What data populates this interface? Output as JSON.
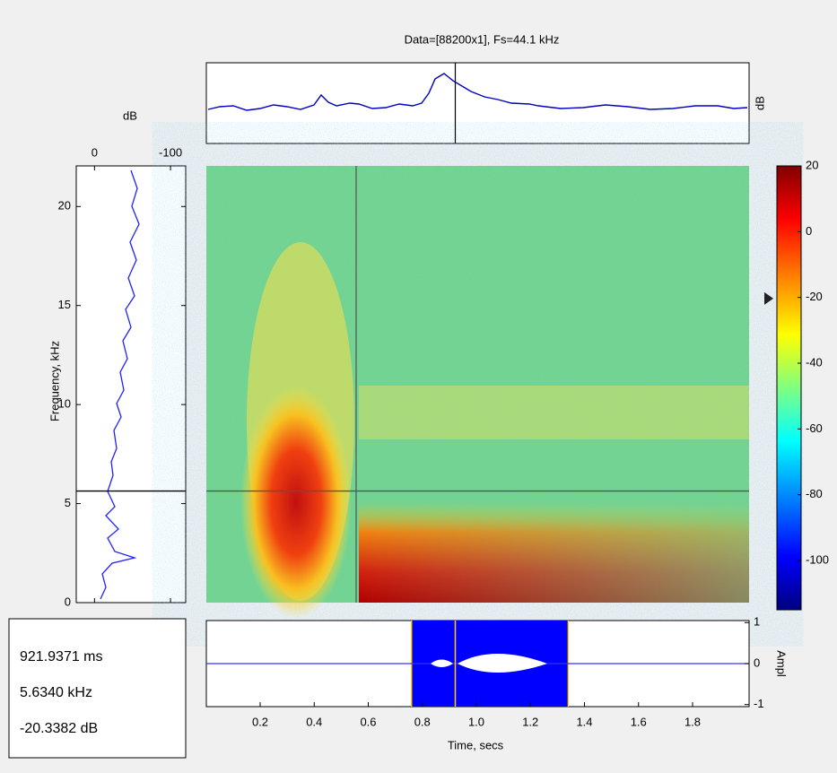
{
  "title": "Data=[88200x1], Fs=44.1 kHz",
  "top_panel": {
    "ylabel": "dB"
  },
  "left_panel": {
    "title": "dB",
    "xlim": [
      24,
      -120
    ],
    "xticks": [
      0,
      -100
    ],
    "ylabel": "Frequency, kHz",
    "ylim": [
      0,
      22.05
    ],
    "yticks": [
      0,
      5,
      10,
      15,
      20
    ],
    "cursor_freq": 5.634
  },
  "colorbar": {
    "lim": [
      -115,
      20
    ],
    "ticks": [
      20,
      0,
      -20,
      -40,
      -60,
      -80,
      -100
    ],
    "marker": -20.3382
  },
  "bottom_panel": {
    "xlabel": "Time, secs",
    "ylabel": "Ampl",
    "xlim": [
      0,
      2
    ],
    "xticks": [
      0.2,
      0.4,
      0.6,
      0.8,
      {
        "value": 1,
        "label": "1.0"
      },
      1.2,
      1.4,
      1.6,
      1.8
    ],
    "ylim": [
      -1.05,
      1.05
    ],
    "yticks": [
      -1,
      0,
      1
    ],
    "selection": [
      0.76,
      1.34
    ],
    "cursor": 0.922
  },
  "readout": [
    "921.9371 ms",
    "5.6340 kHz",
    "-20.3382 dB"
  ]
}
